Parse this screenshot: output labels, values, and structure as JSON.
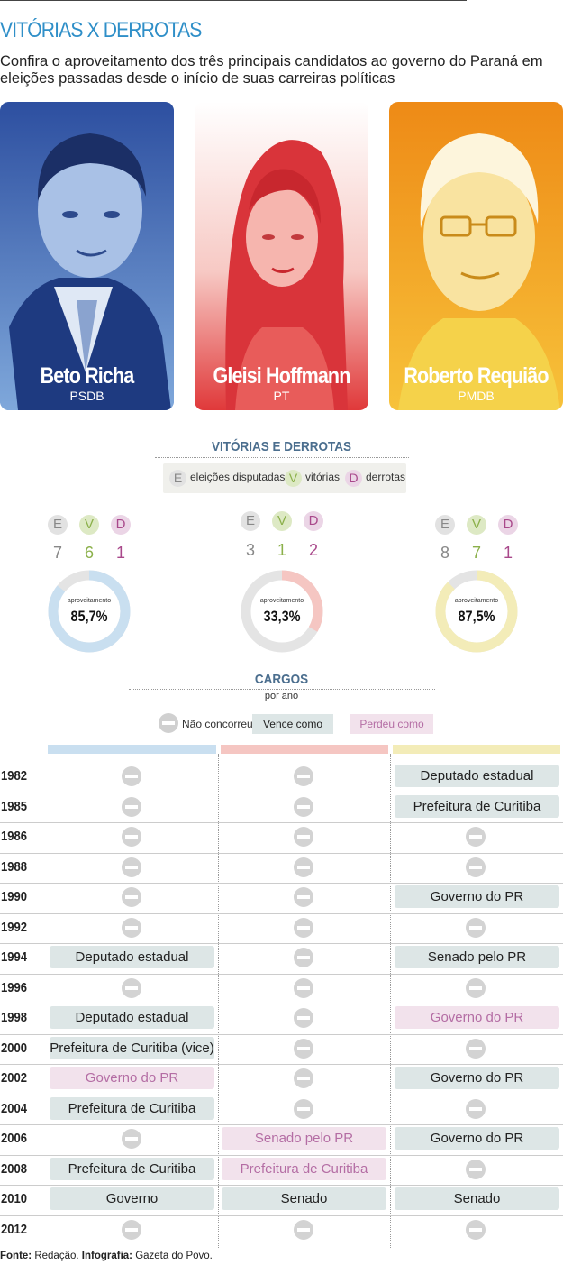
{
  "title": "VITÓRIAS X DERROTAS",
  "subtitle": "Confira o aproveitamento dos três principais candidatos ao governo do Paraná em eleições passadas desde o início de suas carreiras políticas",
  "candidates": [
    {
      "name": "Beto Richa",
      "party": "PSDB",
      "color": "#3a6fb8"
    },
    {
      "name": "Gleisi Hoffmann",
      "party": "PT",
      "color": "#e0393a"
    },
    {
      "name": "Roberto Requião",
      "party": "PMDB",
      "color": "#f2a51e"
    }
  ],
  "section_results": "VITÓRIAS E DERROTAS",
  "legend": {
    "e_letter": "E",
    "e_label": "eleições disputadas",
    "v_letter": "V",
    "v_label": "vitórias",
    "d_letter": "D",
    "d_label": "derrotas"
  },
  "results": [
    {
      "e": "7",
      "v": "6",
      "d": "1",
      "label": "aproveitamento",
      "pct_text": "85,7%",
      "pct": 85.7,
      "ring_color": "#c9dff0"
    },
    {
      "e": "3",
      "v": "1",
      "d": "2",
      "label": "aproveitamento",
      "pct_text": "33,3%",
      "pct": 33.3,
      "ring_color": "#f5c6c2"
    },
    {
      "e": "8",
      "v": "7",
      "d": "1",
      "label": "aproveitamento",
      "pct_text": "87,5%",
      "pct": 87.5,
      "ring_color": "#f3ecb8"
    }
  ],
  "section_cargos": "CARGOS",
  "cargos_sub": "por ano",
  "cargos_key": {
    "nc": "Não concorreu",
    "win": "Vence como",
    "loss": "Perdeu como"
  },
  "column_colors": [
    "#c9dff0",
    "#f5c6c2",
    "#f3ecb8"
  ],
  "chart_data": {
    "type": "table",
    "title": "VITÓRIAS E DERROTAS",
    "columns": [
      "Beto Richa",
      "Gleisi Hoffmann",
      "Roberto Requião"
    ],
    "summary": [
      {
        "candidate": "Beto Richa",
        "elections": 7,
        "wins": 6,
        "losses": 1,
        "rate": 85.7
      },
      {
        "candidate": "Gleisi Hoffmann",
        "elections": 3,
        "wins": 1,
        "losses": 2,
        "rate": 33.3
      },
      {
        "candidate": "Roberto Requião",
        "elections": 8,
        "wins": 7,
        "losses": 1,
        "rate": 87.5
      }
    ],
    "rows": [
      {
        "year": "1982",
        "cells": [
          {
            "s": "nc"
          },
          {
            "s": "nc"
          },
          {
            "s": "win",
            "t": "Deputado estadual"
          }
        ]
      },
      {
        "year": "1985",
        "cells": [
          {
            "s": "nc"
          },
          {
            "s": "nc"
          },
          {
            "s": "win",
            "t": "Prefeitura de Curitiba"
          }
        ]
      },
      {
        "year": "1986",
        "cells": [
          {
            "s": "nc"
          },
          {
            "s": "nc"
          },
          {
            "s": "nc"
          }
        ]
      },
      {
        "year": "1988",
        "cells": [
          {
            "s": "nc"
          },
          {
            "s": "nc"
          },
          {
            "s": "nc"
          }
        ]
      },
      {
        "year": "1990",
        "cells": [
          {
            "s": "nc"
          },
          {
            "s": "nc"
          },
          {
            "s": "win",
            "t": "Governo do PR"
          }
        ]
      },
      {
        "year": "1992",
        "cells": [
          {
            "s": "nc"
          },
          {
            "s": "nc"
          },
          {
            "s": "nc"
          }
        ]
      },
      {
        "year": "1994",
        "cells": [
          {
            "s": "win",
            "t": "Deputado estadual"
          },
          {
            "s": "nc"
          },
          {
            "s": "win",
            "t": "Senado pelo PR"
          }
        ]
      },
      {
        "year": "1996",
        "cells": [
          {
            "s": "nc"
          },
          {
            "s": "nc"
          },
          {
            "s": "nc"
          }
        ]
      },
      {
        "year": "1998",
        "cells": [
          {
            "s": "win",
            "t": "Deputado estadual"
          },
          {
            "s": "nc"
          },
          {
            "s": "loss",
            "t": "Governo do PR"
          }
        ]
      },
      {
        "year": "2000",
        "cells": [
          {
            "s": "win",
            "t": "Prefeitura de Curitiba (vice)"
          },
          {
            "s": "nc"
          },
          {
            "s": "nc"
          }
        ]
      },
      {
        "year": "2002",
        "cells": [
          {
            "s": "loss",
            "t": "Governo do PR"
          },
          {
            "s": "nc"
          },
          {
            "s": "win",
            "t": "Governo do PR"
          }
        ]
      },
      {
        "year": "2004",
        "cells": [
          {
            "s": "win",
            "t": "Prefeitura de Curitiba"
          },
          {
            "s": "nc"
          },
          {
            "s": "nc"
          }
        ]
      },
      {
        "year": "2006",
        "cells": [
          {
            "s": "nc"
          },
          {
            "s": "loss",
            "t": "Senado pelo PR"
          },
          {
            "s": "win",
            "t": "Governo do PR"
          }
        ]
      },
      {
        "year": "2008",
        "cells": [
          {
            "s": "win",
            "t": "Prefeitura de Curitiba"
          },
          {
            "s": "loss",
            "t": "Prefeitura de Curitiba"
          },
          {
            "s": "nc"
          }
        ]
      },
      {
        "year": "2010",
        "cells": [
          {
            "s": "win",
            "t": "Governo"
          },
          {
            "s": "win",
            "t": "Senado"
          },
          {
            "s": "win",
            "t": "Senado"
          }
        ]
      },
      {
        "year": "2012",
        "cells": [
          {
            "s": "nc"
          },
          {
            "s": "nc"
          },
          {
            "s": "nc"
          }
        ]
      }
    ]
  },
  "source": {
    "a_label": "Fonte:",
    "a_value": " Redação. ",
    "b_label": "Infografia:",
    "b_value": " Gazeta do Povo."
  }
}
